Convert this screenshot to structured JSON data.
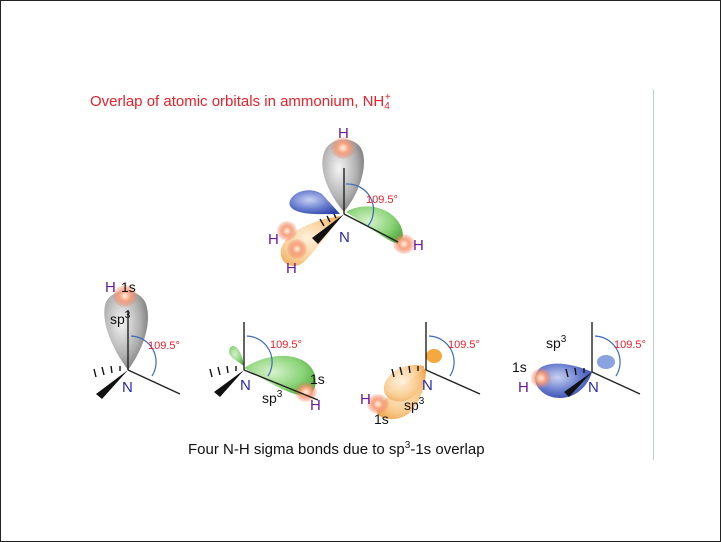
{
  "title": {
    "main": "Overlap of atomic orbitals in ammonium, NH",
    "sub": "4",
    "sup": "+"
  },
  "caption": {
    "before": "Four N-H sigma bonds due to sp",
    "sup": "3",
    "after": "-1s overlap"
  },
  "labels": {
    "hydrogen": "H",
    "nitrogen": "N",
    "orbital_1s": "1s",
    "orbital_sp": "sp",
    "orbital_sp_exp": "3",
    "angle": "109.5°"
  },
  "colors": {
    "title": "#e8202a",
    "angle": "#e8202a",
    "hydrogen_label": "#6a1a9a",
    "nitrogen_label": "#2a2aa8",
    "lobe_gray": "#8a8a8a",
    "lobe_green": "#6cc45c",
    "lobe_orange": "#f4b05a",
    "lobe_blue": "#3a52b8",
    "s_orbital": "#f07a5a",
    "angle_arc": "#3a6ab8"
  }
}
